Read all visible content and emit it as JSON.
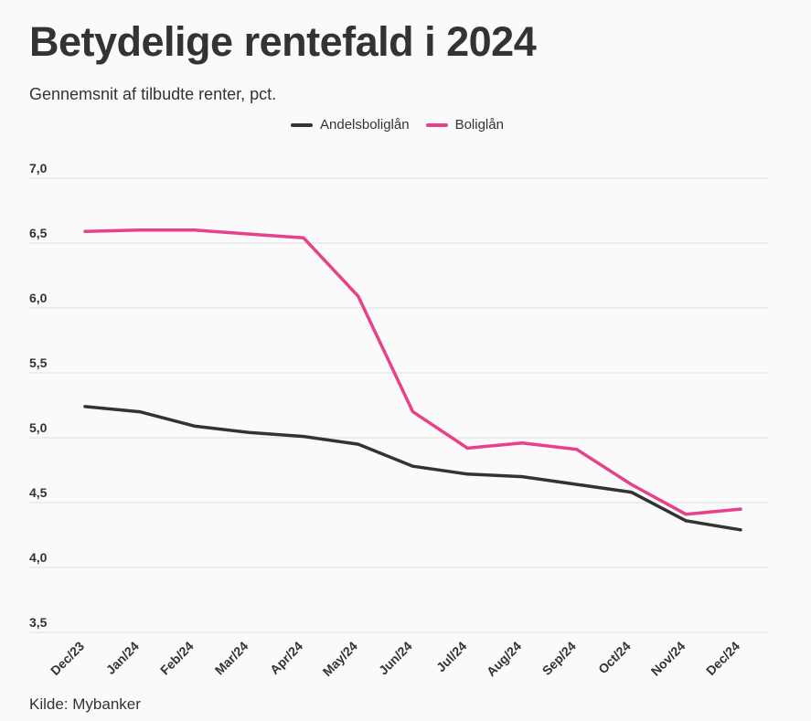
{
  "title": "Betydelige rentefald i 2024",
  "subtitle": "Gennemsnit af tilbudte renter, pct.",
  "source": "Kilde: Mybanker",
  "colors": {
    "andelsboliglaan": "#333333",
    "boliglaan": "#e8418a",
    "grid": "#dddddd"
  },
  "chart_data": {
    "type": "line",
    "x": [
      "Dec/23",
      "Jan/24",
      "Feb/24",
      "Mar/24",
      "Apr/24",
      "May/24",
      "Jun/24",
      "Jul/24",
      "Aug/24",
      "Sep/24",
      "Oct/24",
      "Nov/24",
      "Dec/24"
    ],
    "yticks": [
      "7,0",
      "6,5",
      "6,0",
      "5,5",
      "5,0",
      "4,5",
      "4,0",
      "3,5"
    ],
    "ylim": [
      3.5,
      7.0
    ],
    "grid": true,
    "legend_position": "top-center",
    "series": [
      {
        "name": "Andelsboliglån",
        "values": [
          5.24,
          5.2,
          5.09,
          5.04,
          5.01,
          4.95,
          4.78,
          4.72,
          4.7,
          4.64,
          4.58,
          4.36,
          4.29
        ]
      },
      {
        "name": "Boliglån",
        "values": [
          6.59,
          6.6,
          6.6,
          6.57,
          6.54,
          6.09,
          5.2,
          4.92,
          4.96,
          4.91,
          4.64,
          4.41,
          4.45
        ]
      }
    ]
  }
}
